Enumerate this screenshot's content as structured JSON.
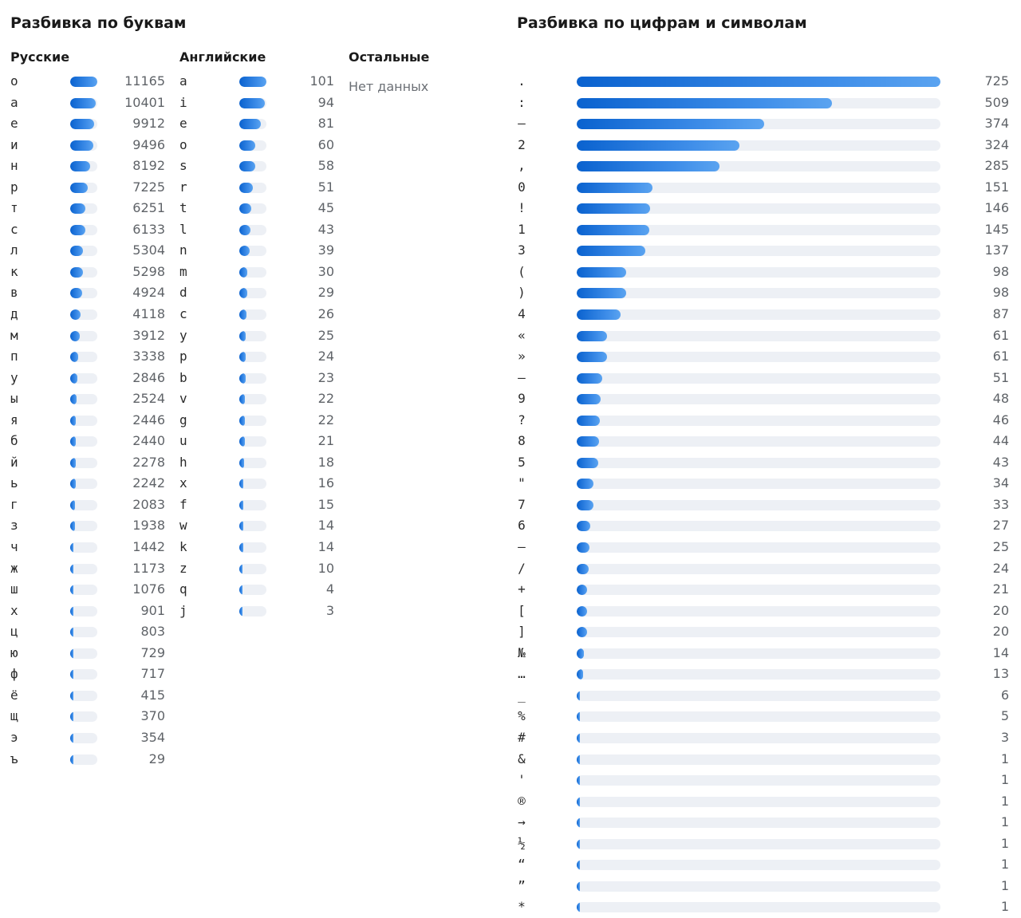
{
  "letters": {
    "title": "Разбивка по буквам",
    "russian": {
      "heading": "Русские",
      "max": 11165,
      "items": [
        {
          "ch": "о",
          "n": 11165
        },
        {
          "ch": "а",
          "n": 10401
        },
        {
          "ch": "е",
          "n": 9912
        },
        {
          "ch": "и",
          "n": 9496
        },
        {
          "ch": "н",
          "n": 8192
        },
        {
          "ch": "р",
          "n": 7225
        },
        {
          "ch": "т",
          "n": 6251
        },
        {
          "ch": "с",
          "n": 6133
        },
        {
          "ch": "л",
          "n": 5304
        },
        {
          "ch": "к",
          "n": 5298
        },
        {
          "ch": "в",
          "n": 4924
        },
        {
          "ch": "д",
          "n": 4118
        },
        {
          "ch": "м",
          "n": 3912
        },
        {
          "ch": "п",
          "n": 3338
        },
        {
          "ch": "у",
          "n": 2846
        },
        {
          "ch": "ы",
          "n": 2524
        },
        {
          "ch": "я",
          "n": 2446
        },
        {
          "ch": "б",
          "n": 2440
        },
        {
          "ch": "й",
          "n": 2278
        },
        {
          "ch": "ь",
          "n": 2242
        },
        {
          "ch": "г",
          "n": 2083
        },
        {
          "ch": "з",
          "n": 1938
        },
        {
          "ch": "ч",
          "n": 1442
        },
        {
          "ch": "ж",
          "n": 1173
        },
        {
          "ch": "ш",
          "n": 1076
        },
        {
          "ch": "х",
          "n": 901
        },
        {
          "ch": "ц",
          "n": 803
        },
        {
          "ch": "ю",
          "n": 729
        },
        {
          "ch": "ф",
          "n": 717
        },
        {
          "ch": "ё",
          "n": 415
        },
        {
          "ch": "щ",
          "n": 370
        },
        {
          "ch": "э",
          "n": 354
        },
        {
          "ch": "ъ",
          "n": 29
        }
      ]
    },
    "english": {
      "heading": "Английские",
      "max": 101,
      "items": [
        {
          "ch": "a",
          "n": 101
        },
        {
          "ch": "i",
          "n": 94
        },
        {
          "ch": "e",
          "n": 81
        },
        {
          "ch": "o",
          "n": 60
        },
        {
          "ch": "s",
          "n": 58
        },
        {
          "ch": "r",
          "n": 51
        },
        {
          "ch": "t",
          "n": 45
        },
        {
          "ch": "l",
          "n": 43
        },
        {
          "ch": "n",
          "n": 39
        },
        {
          "ch": "m",
          "n": 30
        },
        {
          "ch": "d",
          "n": 29
        },
        {
          "ch": "c",
          "n": 26
        },
        {
          "ch": "y",
          "n": 25
        },
        {
          "ch": "p",
          "n": 24
        },
        {
          "ch": "b",
          "n": 23
        },
        {
          "ch": "v",
          "n": 22
        },
        {
          "ch": "g",
          "n": 22
        },
        {
          "ch": "u",
          "n": 21
        },
        {
          "ch": "h",
          "n": 18
        },
        {
          "ch": "x",
          "n": 16
        },
        {
          "ch": "f",
          "n": 15
        },
        {
          "ch": "w",
          "n": 14
        },
        {
          "ch": "k",
          "n": 14
        },
        {
          "ch": "z",
          "n": 10
        },
        {
          "ch": "q",
          "n": 4
        },
        {
          "ch": "j",
          "n": 3
        }
      ]
    },
    "other": {
      "heading": "Остальные",
      "empty_text": "Нет данных"
    }
  },
  "symbols": {
    "title": "Разбивка по цифрам и символам",
    "max": 725,
    "items": [
      {
        "ch": ".",
        "n": 725
      },
      {
        "ch": ":",
        "n": 509
      },
      {
        "ch": "–",
        "n": 374
      },
      {
        "ch": "2",
        "n": 324
      },
      {
        "ch": ",",
        "n": 285
      },
      {
        "ch": "0",
        "n": 151
      },
      {
        "ch": "!",
        "n": 146
      },
      {
        "ch": "1",
        "n": 145
      },
      {
        "ch": "3",
        "n": 137
      },
      {
        "ch": "(",
        "n": 98
      },
      {
        "ch": ")",
        "n": 98
      },
      {
        "ch": "4",
        "n": 87
      },
      {
        "ch": "«",
        "n": 61
      },
      {
        "ch": "»",
        "n": 61
      },
      {
        "ch": "—",
        "n": 51
      },
      {
        "ch": "9",
        "n": 48
      },
      {
        "ch": "?",
        "n": 46
      },
      {
        "ch": "8",
        "n": 44
      },
      {
        "ch": "5",
        "n": 43
      },
      {
        "ch": "\"",
        "n": 34
      },
      {
        "ch": "7",
        "n": 33
      },
      {
        "ch": "6",
        "n": 27
      },
      {
        "ch": "—",
        "n": 25
      },
      {
        "ch": "/",
        "n": 24
      },
      {
        "ch": "+",
        "n": 21
      },
      {
        "ch": "[",
        "n": 20
      },
      {
        "ch": "]",
        "n": 20
      },
      {
        "ch": "№",
        "n": 14
      },
      {
        "ch": "…",
        "n": 13
      },
      {
        "ch": "_",
        "n": 6
      },
      {
        "ch": "%",
        "n": 5
      },
      {
        "ch": "#",
        "n": 3
      },
      {
        "ch": "&",
        "n": 1
      },
      {
        "ch": "'",
        "n": 1
      },
      {
        "ch": "®",
        "n": 1
      },
      {
        "ch": "→",
        "n": 1
      },
      {
        "ch": "½",
        "n": 1
      },
      {
        "ch": "“",
        "n": 1
      },
      {
        "ch": "”",
        "n": 1
      },
      {
        "ch": "*",
        "n": 1
      }
    ]
  }
}
